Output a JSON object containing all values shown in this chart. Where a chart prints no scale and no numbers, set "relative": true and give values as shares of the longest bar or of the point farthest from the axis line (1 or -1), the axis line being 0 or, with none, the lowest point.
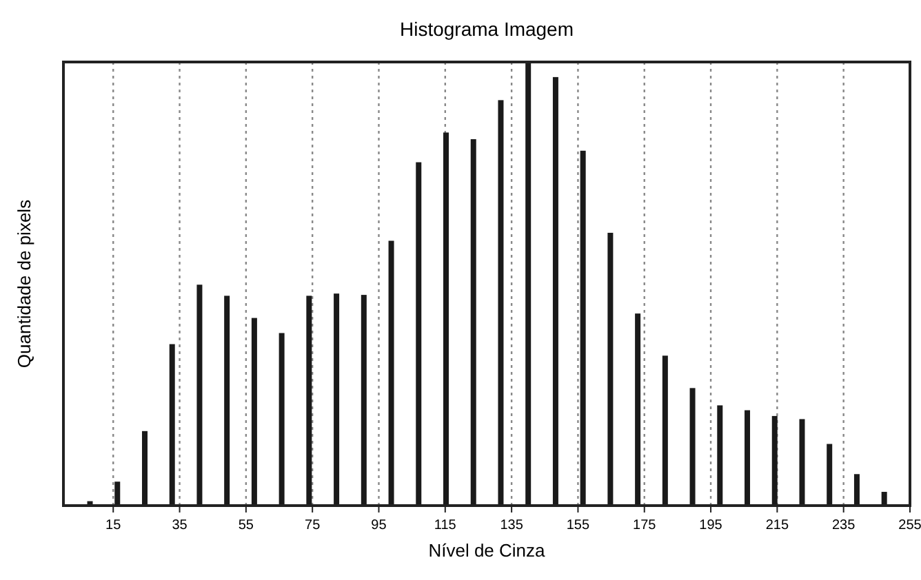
{
  "chart_data": {
    "type": "bar",
    "title": "Histograma Imagem",
    "xlabel": "Nível de Cinza",
    "ylabel": "Quantidade de pixels",
    "relative": true,
    "grid": "x",
    "color": "#1a1a1a",
    "x": [
      8,
      16.25,
      24.5,
      32.75,
      41,
      49.25,
      57.5,
      65.75,
      74,
      82.25,
      90.5,
      98.75,
      107,
      115.25,
      123.5,
      131.75,
      140,
      148.25,
      156.5,
      164.75,
      173,
      181.25,
      189.5,
      197.75,
      206,
      214.25,
      222.5,
      230.75,
      239,
      247.25
    ],
    "values": [
      0.01,
      0.054,
      0.168,
      0.364,
      0.498,
      0.473,
      0.423,
      0.389,
      0.473,
      0.478,
      0.475,
      0.597,
      0.774,
      0.841,
      0.826,
      0.914,
      1,
      0.966,
      0.8,
      0.615,
      0.433,
      0.338,
      0.265,
      0.226,
      0.215,
      0.202,
      0.195,
      0.139,
      0.071,
      0.031
    ],
    "xlim": [
      0,
      255
    ],
    "xticks": [
      15,
      35,
      55,
      75,
      95,
      115,
      135,
      155,
      175,
      195,
      215,
      235,
      255
    ]
  }
}
